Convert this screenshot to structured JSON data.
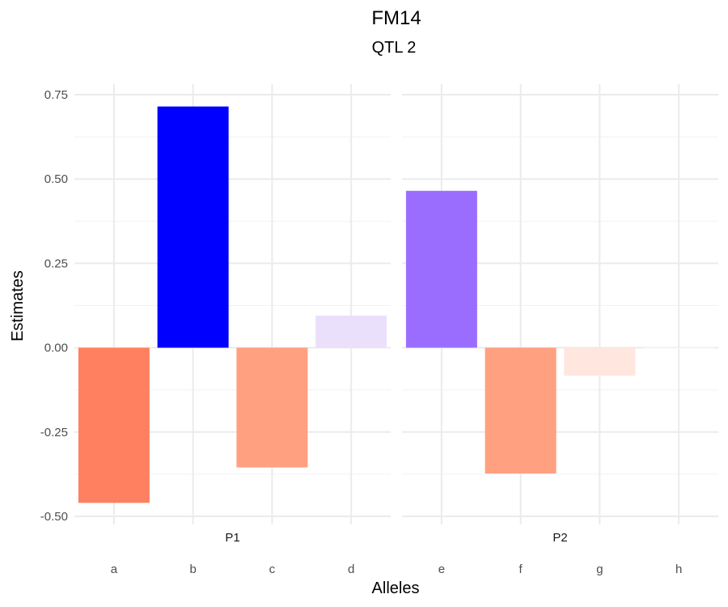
{
  "chart_data": {
    "type": "bar",
    "title": "FM14",
    "subtitle": "QTL 2",
    "xlabel": "Alleles",
    "ylabel": "Estimates",
    "ylim": [
      -0.5,
      0.75
    ],
    "y_ticks": [
      -0.5,
      -0.25,
      0.0,
      0.25,
      0.5,
      0.75
    ],
    "y_tick_labels": [
      "-0.50",
      "-0.25",
      "0.00",
      "0.25",
      "0.50",
      "0.75"
    ],
    "grid": true,
    "legend": "none",
    "panels": [
      {
        "label": "P1",
        "categories": [
          "a",
          "b",
          "c",
          "d"
        ],
        "values": [
          -0.46,
          0.715,
          -0.355,
          0.095
        ],
        "colors": [
          "#ff8060",
          "#0000ff",
          "#ffa080",
          "#ebe0fc"
        ]
      },
      {
        "label": "P2",
        "categories": [
          "e",
          "f",
          "g",
          "h"
        ],
        "values": [
          0.465,
          -0.373,
          -0.083,
          -0.003
        ],
        "colors": [
          "#9b6dff",
          "#ffa080",
          "#ffe6de",
          "#fff7f5"
        ]
      }
    ]
  }
}
